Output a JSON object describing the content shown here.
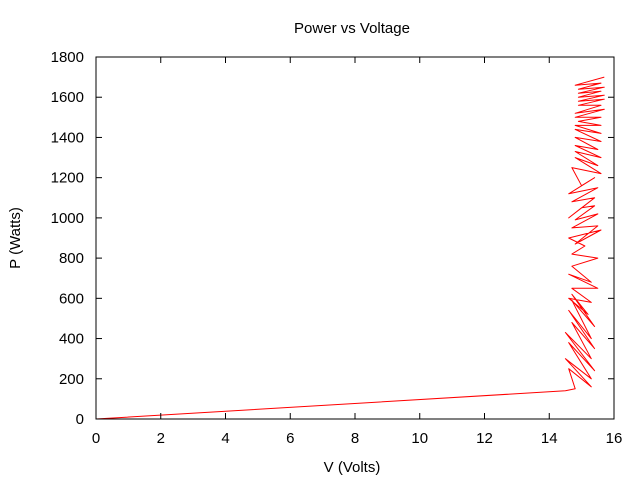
{
  "chart_data": {
    "type": "line",
    "title": "Power vs Voltage",
    "xlabel": "V (Volts)",
    "ylabel": "P (Watts)",
    "xlim": [
      0,
      16
    ],
    "ylim": [
      0,
      1800
    ],
    "xticks": [
      0,
      2,
      4,
      6,
      8,
      10,
      12,
      14,
      16
    ],
    "yticks": [
      0,
      200,
      400,
      600,
      800,
      1000,
      1200,
      1400,
      1600,
      1800
    ],
    "grid": false,
    "legend": "none",
    "series": [
      {
        "color": "#ff0000",
        "x": [
          0,
          14.5,
          14.8,
          14.6,
          15.3,
          14.5,
          15.3,
          14.6,
          15.4,
          14.5,
          15.3,
          14.7,
          15.4,
          14.6,
          15.3,
          14.7,
          15.4,
          14.7,
          15.2,
          14.6,
          15.3,
          14.7,
          15.5,
          14.6,
          15.3,
          14.7,
          15.5,
          14.7,
          15.1,
          14.6,
          15.6,
          14.8,
          15.5,
          14.7,
          15.5,
          14.8,
          15.4,
          15.0,
          14.6,
          15.4,
          14.7,
          15.5,
          14.6,
          15.4,
          15.0,
          14.7,
          15.6,
          14.8,
          15.5,
          14.8,
          15.6,
          14.8,
          15.5,
          14.8,
          15.6,
          14.8,
          15.6,
          14.8,
          15.6,
          14.9,
          15.6,
          14.8,
          15.7,
          14.8,
          15.6,
          14.9,
          15.7,
          14.9,
          15.7,
          14.9,
          15.6,
          14.9,
          15.7,
          14.9,
          15.6,
          14.8,
          15.7
        ],
        "y": [
          0,
          140,
          150,
          250,
          160,
          300,
          200,
          380,
          240,
          430,
          300,
          480,
          350,
          540,
          400,
          590,
          460,
          620,
          520,
          600,
          580,
          650,
          650,
          720,
          680,
          760,
          800,
          820,
          860,
          900,
          940,
          870,
          960,
          950,
          1020,
          990,
          1060,
          1050,
          1000,
          1100,
          1080,
          1150,
          1120,
          1200,
          1160,
          1250,
          1220,
          1300,
          1260,
          1330,
          1300,
          1360,
          1340,
          1400,
          1380,
          1440,
          1420,
          1460,
          1460,
          1480,
          1500,
          1500,
          1540,
          1520,
          1560,
          1560,
          1590,
          1580,
          1610,
          1600,
          1630,
          1620,
          1650,
          1640,
          1670,
          1660,
          1700
        ]
      }
    ]
  }
}
